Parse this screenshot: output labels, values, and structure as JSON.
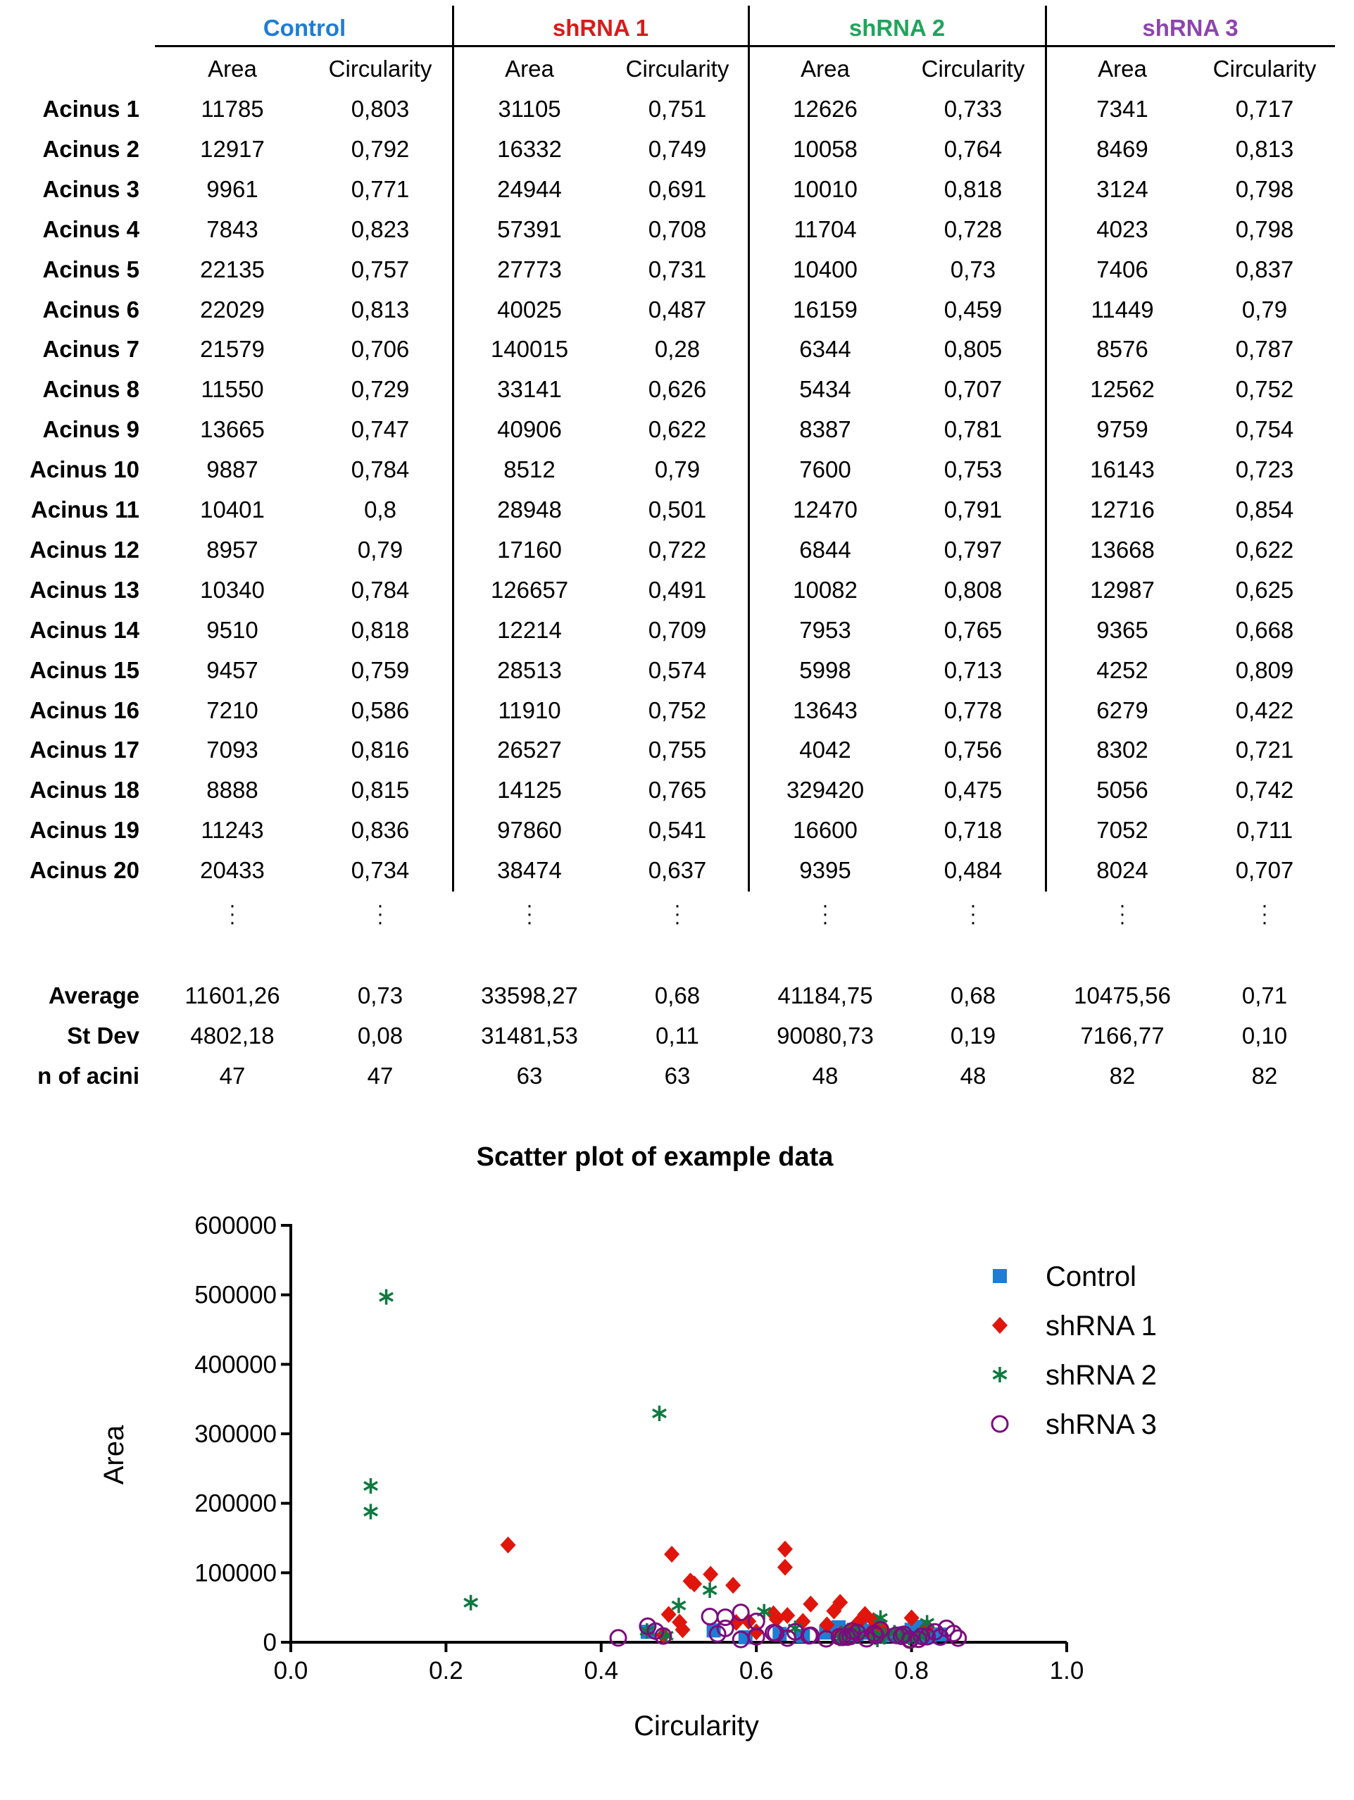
{
  "table": {
    "groups": [
      {
        "name": "Control",
        "color": "#1F7DD4"
      },
      {
        "name": "shRNA 1",
        "color": "#D81B1B"
      },
      {
        "name": "shRNA 2",
        "color": "#1FA45C"
      },
      {
        "name": "shRNA 3",
        "color": "#8E44AD"
      }
    ],
    "subheaders": [
      "Area",
      "Circularity"
    ],
    "rows": [
      {
        "label": "Acinus 1",
        "values": [
          "11785",
          "0,803",
          "31105",
          "0,751",
          "12626",
          "0,733",
          "7341",
          "0,717"
        ]
      },
      {
        "label": "Acinus 2",
        "values": [
          "12917",
          "0,792",
          "16332",
          "0,749",
          "10058",
          "0,764",
          "8469",
          "0,813"
        ]
      },
      {
        "label": "Acinus 3",
        "values": [
          "9961",
          "0,771",
          "24944",
          "0,691",
          "10010",
          "0,818",
          "3124",
          "0,798"
        ]
      },
      {
        "label": "Acinus 4",
        "values": [
          "7843",
          "0,823",
          "57391",
          "0,708",
          "11704",
          "0,728",
          "4023",
          "0,798"
        ]
      },
      {
        "label": "Acinus 5",
        "values": [
          "22135",
          "0,757",
          "27773",
          "0,731",
          "10400",
          "0,73",
          "7406",
          "0,837"
        ]
      },
      {
        "label": "Acinus 6",
        "values": [
          "22029",
          "0,813",
          "40025",
          "0,487",
          "16159",
          "0,459",
          "11449",
          "0,79"
        ]
      },
      {
        "label": "Acinus 7",
        "values": [
          "21579",
          "0,706",
          "140015",
          "0,28",
          "6344",
          "0,805",
          "8576",
          "0,787"
        ]
      },
      {
        "label": "Acinus 8",
        "values": [
          "11550",
          "0,729",
          "33141",
          "0,626",
          "5434",
          "0,707",
          "12562",
          "0,752"
        ]
      },
      {
        "label": "Acinus 9",
        "values": [
          "13665",
          "0,747",
          "40906",
          "0,622",
          "8387",
          "0,781",
          "9759",
          "0,754"
        ]
      },
      {
        "label": "Acinus 10",
        "values": [
          "9887",
          "0,784",
          "8512",
          "0,79",
          "7600",
          "0,753",
          "16143",
          "0,723"
        ]
      },
      {
        "label": "Acinus 11",
        "values": [
          "10401",
          "0,8",
          "28948",
          "0,501",
          "12470",
          "0,791",
          "12716",
          "0,854"
        ]
      },
      {
        "label": "Acinus 12",
        "values": [
          "8957",
          "0,79",
          "17160",
          "0,722",
          "6844",
          "0,797",
          "13668",
          "0,622"
        ]
      },
      {
        "label": "Acinus 13",
        "values": [
          "10340",
          "0,784",
          "126657",
          "0,491",
          "10082",
          "0,808",
          "12987",
          "0,625"
        ]
      },
      {
        "label": "Acinus 14",
        "values": [
          "9510",
          "0,818",
          "12214",
          "0,709",
          "7953",
          "0,765",
          "9365",
          "0,668"
        ]
      },
      {
        "label": "Acinus 15",
        "values": [
          "9457",
          "0,759",
          "28513",
          "0,574",
          "5998",
          "0,713",
          "4252",
          "0,809"
        ]
      },
      {
        "label": "Acinus 16",
        "values": [
          "7210",
          "0,586",
          "11910",
          "0,752",
          "13643",
          "0,778",
          "6279",
          "0,422"
        ]
      },
      {
        "label": "Acinus 17",
        "values": [
          "7093",
          "0,816",
          "26527",
          "0,755",
          "4042",
          "0,756",
          "8302",
          "0,721"
        ]
      },
      {
        "label": "Acinus 18",
        "values": [
          "8888",
          "0,815",
          "14125",
          "0,765",
          "329420",
          "0,475",
          "5056",
          "0,742"
        ]
      },
      {
        "label": "Acinus 19",
        "values": [
          "11243",
          "0,836",
          "97860",
          "0,541",
          "16600",
          "0,718",
          "7052",
          "0,711"
        ]
      },
      {
        "label": "Acinus 20",
        "values": [
          "20433",
          "0,734",
          "38474",
          "0,637",
          "9395",
          "0,484",
          "8024",
          "0,707"
        ]
      }
    ],
    "summary": [
      {
        "label": "Average",
        "values": [
          "11601,26",
          "0,73",
          "33598,27",
          "0,68",
          "41184,75",
          "0,68",
          "10475,56",
          "0,71"
        ]
      },
      {
        "label": "St Dev",
        "values": [
          "4802,18",
          "0,08",
          "31481,53",
          "0,11",
          "90080,73",
          "0,19",
          "7166,77",
          "0,10"
        ]
      },
      {
        "label": "n of acini",
        "values": [
          "47",
          "47",
          "63",
          "63",
          "48",
          "48",
          "82",
          "82"
        ]
      }
    ]
  },
  "chart_data": {
    "type": "scatter",
    "title": "Scatter plot of example data",
    "xlabel": "Circularity",
    "ylabel": "Area",
    "xlim": [
      0.0,
      1.0
    ],
    "ylim": [
      0,
      600000
    ],
    "xticks": [
      0.0,
      0.2,
      0.4,
      0.6,
      0.8,
      1.0
    ],
    "xtick_labels": [
      "0.0",
      "0.2",
      "0.4",
      "0.6",
      "0.8",
      "1.0"
    ],
    "yticks": [
      0,
      100000,
      200000,
      300000,
      400000,
      500000,
      600000
    ],
    "ytick_labels": [
      "0",
      "100000",
      "200000",
      "300000",
      "400000",
      "500000",
      "600000"
    ],
    "legend_position": "top-right",
    "series": [
      {
        "name": "Control",
        "marker": "square",
        "color": "#1F7DD4",
        "points": [
          [
            0.803,
            11785
          ],
          [
            0.792,
            12917
          ],
          [
            0.771,
            9961
          ],
          [
            0.823,
            7843
          ],
          [
            0.757,
            22135
          ],
          [
            0.813,
            22029
          ],
          [
            0.706,
            21579
          ],
          [
            0.729,
            11550
          ],
          [
            0.747,
            13665
          ],
          [
            0.784,
            9887
          ],
          [
            0.8,
            10401
          ],
          [
            0.79,
            8957
          ],
          [
            0.784,
            10340
          ],
          [
            0.818,
            9510
          ],
          [
            0.759,
            9457
          ],
          [
            0.586,
            7210
          ],
          [
            0.816,
            7093
          ],
          [
            0.815,
            8888
          ],
          [
            0.836,
            11243
          ],
          [
            0.734,
            20433
          ],
          [
            0.46,
            15000
          ],
          [
            0.545,
            17000
          ],
          [
            0.63,
            12000
          ],
          [
            0.69,
            14000
          ],
          [
            0.66,
            9000
          ],
          [
            0.75,
            16000
          ],
          [
            0.8,
            18000
          ]
        ]
      },
      {
        "name": "shRNA 1",
        "marker": "diamond",
        "color": "#E0150C",
        "points": [
          [
            0.28,
            140015
          ],
          [
            0.491,
            126657
          ],
          [
            0.541,
            97860
          ],
          [
            0.637,
            134000
          ],
          [
            0.637,
            108000
          ],
          [
            0.515,
            88000
          ],
          [
            0.52,
            84000
          ],
          [
            0.57,
            82000
          ],
          [
            0.487,
            40025
          ],
          [
            0.501,
            28948
          ],
          [
            0.505,
            18000
          ],
          [
            0.622,
            40906
          ],
          [
            0.626,
            33141
          ],
          [
            0.64,
            38474
          ],
          [
            0.691,
            24944
          ],
          [
            0.708,
            57391
          ],
          [
            0.731,
            27773
          ],
          [
            0.67,
            55000
          ],
          [
            0.709,
            12214
          ],
          [
            0.722,
            17160
          ],
          [
            0.749,
            16332
          ],
          [
            0.751,
            31105
          ],
          [
            0.752,
            11910
          ],
          [
            0.755,
            26527
          ],
          [
            0.765,
            14125
          ],
          [
            0.79,
            8512
          ],
          [
            0.574,
            28513
          ],
          [
            0.59,
            30000
          ],
          [
            0.6,
            15000
          ],
          [
            0.66,
            30000
          ],
          [
            0.7,
            45000
          ],
          [
            0.74,
            40000
          ],
          [
            0.8,
            35000
          ],
          [
            0.82,
            22000
          ],
          [
            0.48,
            10000
          ]
        ]
      },
      {
        "name": "shRNA 2",
        "marker": "star",
        "color": "#0E7A40",
        "points": [
          [
            0.123,
            497000
          ],
          [
            0.475,
            329420
          ],
          [
            0.103,
            225000
          ],
          [
            0.103,
            188000
          ],
          [
            0.232,
            57000
          ],
          [
            0.54,
            75000
          ],
          [
            0.5,
            53000
          ],
          [
            0.61,
            44000
          ],
          [
            0.484,
            9395
          ],
          [
            0.459,
            16159
          ],
          [
            0.707,
            5434
          ],
          [
            0.713,
            5998
          ],
          [
            0.718,
            16600
          ],
          [
            0.728,
            11704
          ],
          [
            0.73,
            10400
          ],
          [
            0.733,
            12626
          ],
          [
            0.753,
            7600
          ],
          [
            0.756,
            4042
          ],
          [
            0.764,
            10058
          ],
          [
            0.765,
            7953
          ],
          [
            0.778,
            13643
          ],
          [
            0.781,
            8387
          ],
          [
            0.791,
            12470
          ],
          [
            0.797,
            6844
          ],
          [
            0.805,
            6344
          ],
          [
            0.808,
            10082
          ],
          [
            0.818,
            10010
          ],
          [
            0.76,
            35000
          ],
          [
            0.82,
            28000
          ],
          [
            0.65,
            20000
          ]
        ]
      },
      {
        "name": "shRNA 3",
        "marker": "circle-open",
        "color": "#7B0C7E",
        "points": [
          [
            0.422,
            6279
          ],
          [
            0.46,
            23000
          ],
          [
            0.47,
            16000
          ],
          [
            0.48,
            9000
          ],
          [
            0.54,
            37000
          ],
          [
            0.56,
            36000
          ],
          [
            0.58,
            43000
          ],
          [
            0.56,
            20000
          ],
          [
            0.6,
            30000
          ],
          [
            0.622,
            13668
          ],
          [
            0.625,
            12987
          ],
          [
            0.668,
            9365
          ],
          [
            0.707,
            8024
          ],
          [
            0.711,
            7052
          ],
          [
            0.717,
            7341
          ],
          [
            0.721,
            8302
          ],
          [
            0.723,
            16143
          ],
          [
            0.742,
            5056
          ],
          [
            0.752,
            12562
          ],
          [
            0.754,
            9759
          ],
          [
            0.787,
            8576
          ],
          [
            0.79,
            11449
          ],
          [
            0.798,
            3124
          ],
          [
            0.798,
            4023
          ],
          [
            0.809,
            4252
          ],
          [
            0.813,
            8469
          ],
          [
            0.837,
            7406
          ],
          [
            0.854,
            12716
          ],
          [
            0.86,
            6000
          ],
          [
            0.845,
            20000
          ],
          [
            0.83,
            15000
          ],
          [
            0.6,
            8000
          ],
          [
            0.58,
            4000
          ],
          [
            0.64,
            6000
          ],
          [
            0.65,
            15000
          ],
          [
            0.67,
            10000
          ],
          [
            0.69,
            5000
          ],
          [
            0.73,
            14000
          ],
          [
            0.76,
            18000
          ],
          [
            0.78,
            10000
          ],
          [
            0.82,
            8000
          ],
          [
            0.55,
            12000
          ]
        ]
      }
    ]
  }
}
